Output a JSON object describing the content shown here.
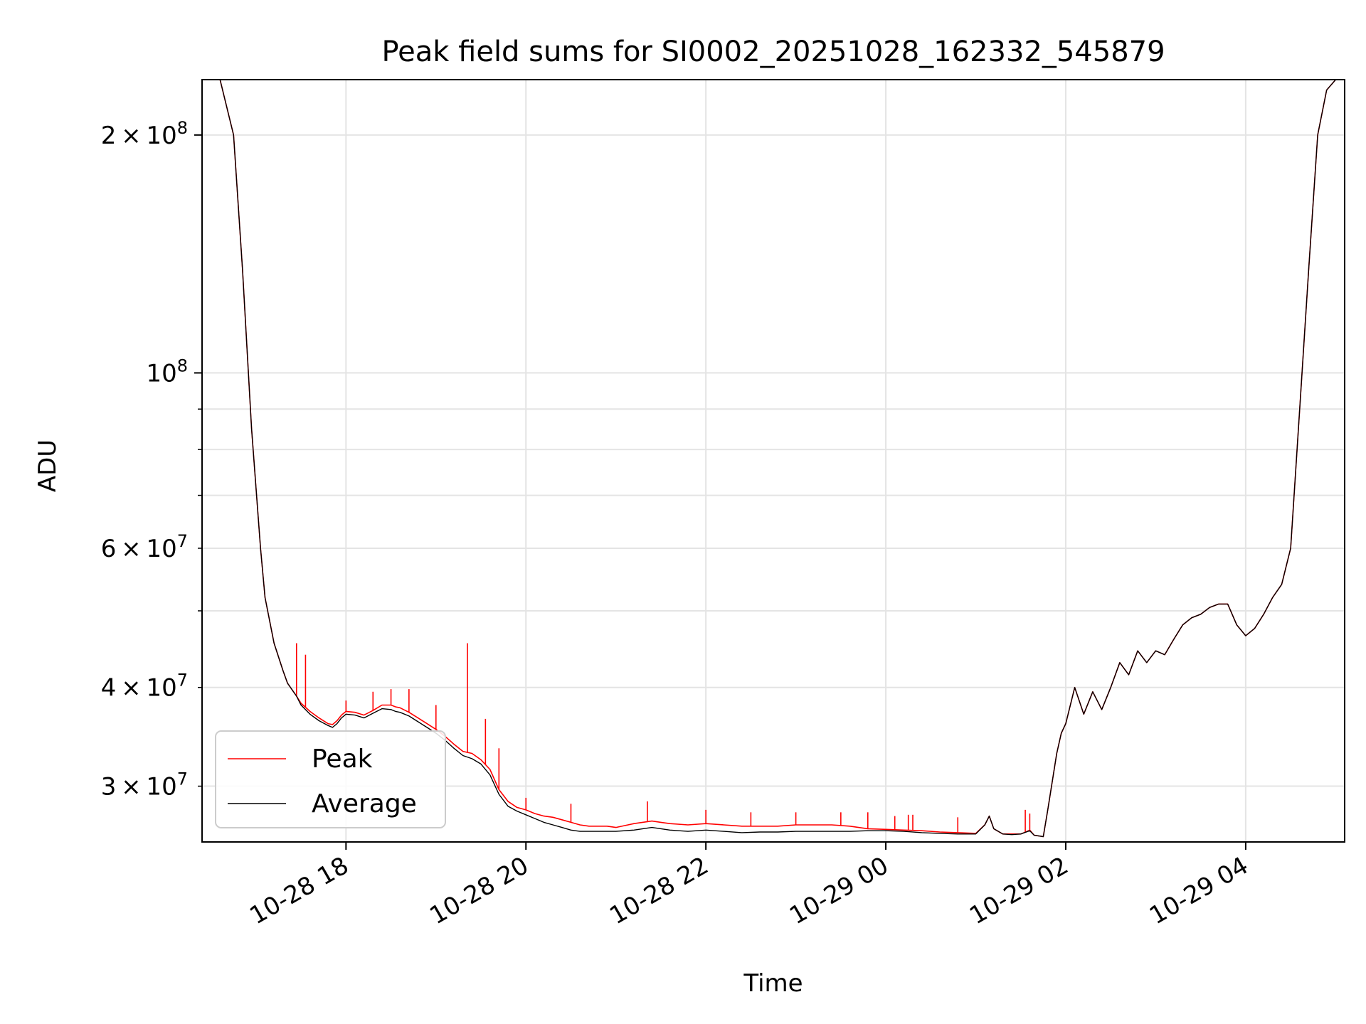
{
  "chart_data": {
    "type": "line",
    "title": "Peak field sums for SI0002_20251028_162332_545879",
    "xlabel": "Time",
    "ylabel": "ADU",
    "yscale": "log",
    "grid": true,
    "legend_position": "lower-left",
    "x_unit": "hours since 10-28 00:00",
    "xlim": [
      16.4,
      29.1
    ],
    "ylim": [
      25500000,
      235000000
    ],
    "xticks": [
      {
        "value": 18,
        "label": "10-28 18"
      },
      {
        "value": 20,
        "label": "10-28 20"
      },
      {
        "value": 22,
        "label": "10-28 22"
      },
      {
        "value": 24,
        "label": "10-29 00"
      },
      {
        "value": 26,
        "label": "10-29 02"
      },
      {
        "value": 28,
        "label": "10-29 04"
      }
    ],
    "yticks_major": [
      {
        "value": 100000000,
        "base": "10",
        "exp": "8",
        "coef": ""
      },
      {
        "value": 200000000,
        "base": "10",
        "exp": "8",
        "coef": "2"
      }
    ],
    "yticks_minor": [
      {
        "value": 30000000,
        "coef": "3",
        "base": "10",
        "exp": "7"
      },
      {
        "value": 40000000,
        "coef": "4",
        "base": "10",
        "exp": "7"
      },
      {
        "value": 50000000,
        "coef": "",
        "base": "",
        "exp": ""
      },
      {
        "value": 60000000,
        "coef": "6",
        "base": "10",
        "exp": "7"
      },
      {
        "value": 70000000,
        "coef": "",
        "base": "",
        "exp": ""
      },
      {
        "value": 80000000,
        "coef": "",
        "base": "",
        "exp": ""
      },
      {
        "value": 90000000,
        "coef": "",
        "base": "",
        "exp": ""
      }
    ],
    "series": [
      {
        "name": "Peak",
        "color": "#ff0000",
        "x": [
          16.4,
          16.6,
          16.75,
          16.85,
          16.95,
          17.05,
          17.1,
          17.2,
          17.3,
          17.35,
          17.45,
          17.5,
          17.6,
          17.7,
          17.8,
          17.85,
          17.9,
          17.95,
          18.0,
          18.1,
          18.2,
          18.3,
          18.4,
          18.5,
          18.55,
          18.6,
          18.7,
          18.8,
          18.9,
          19.0,
          19.1,
          19.2,
          19.3,
          19.4,
          19.5,
          19.6,
          19.7,
          19.8,
          19.9,
          20.0,
          20.1,
          20.2,
          20.3,
          20.4,
          20.5,
          20.6,
          20.7,
          20.8,
          20.9,
          21.0,
          21.2,
          21.4,
          21.5,
          21.6,
          21.8,
          22.0,
          22.2,
          22.4,
          22.6,
          22.8,
          23.0,
          23.2,
          23.4,
          23.6,
          23.8,
          24.0,
          24.2,
          24.4,
          24.6,
          24.8,
          25.0,
          25.1,
          25.15,
          25.2,
          25.3,
          25.4,
          25.5,
          25.6,
          25.65,
          25.75,
          25.8,
          25.9,
          25.95,
          26.0,
          26.1,
          26.2,
          26.3,
          26.4,
          26.5,
          26.6,
          26.7,
          26.8,
          26.9,
          27.0,
          27.1,
          27.2,
          27.3,
          27.4,
          27.5,
          27.6,
          27.7,
          27.8,
          27.9,
          28.0,
          28.1,
          28.2,
          28.3,
          28.4,
          28.5,
          28.6,
          28.7,
          28.8,
          28.9,
          29.0,
          29.1
        ],
        "values": [
          235000000,
          235000000,
          200000000,
          135000000,
          85000000,
          60000000,
          52000000,
          45500000,
          42000000,
          40500000,
          39000000,
          38200000,
          37300000,
          36600000,
          36000000,
          35900000,
          36300000,
          36900000,
          37300000,
          37200000,
          36900000,
          37400000,
          38000000,
          38000000,
          37800000,
          37700000,
          37200000,
          36600000,
          36000000,
          35400000,
          34700000,
          33900000,
          33200000,
          33000000,
          32400000,
          31500000,
          29700000,
          28700000,
          28200000,
          28000000,
          27700000,
          27500000,
          27400000,
          27200000,
          27000000,
          26800000,
          26700000,
          26700000,
          26700000,
          26600000,
          26900000,
          27100000,
          27000000,
          26900000,
          26800000,
          26900000,
          26800000,
          26700000,
          26700000,
          26700000,
          26800000,
          26800000,
          26800000,
          26700000,
          26500000,
          26450000,
          26400000,
          26350000,
          26250000,
          26200000,
          26150000,
          26800000,
          27500000,
          26500000,
          26100000,
          26100000,
          26100000,
          26400000,
          26000000,
          25900000,
          28000000,
          33000000,
          35000000,
          36000000,
          40000000,
          37000000,
          39500000,
          37500000,
          40000000,
          43000000,
          41500000,
          44500000,
          43000000,
          44500000,
          44000000,
          46000000,
          48000000,
          49000000,
          49500000,
          50500000,
          51000000,
          51000000,
          48000000,
          46500000,
          47500000,
          49500000,
          52000000,
          54000000,
          60000000,
          90000000,
          135000000,
          200000000,
          228000000,
          235000000,
          235000000
        ],
        "spikes": [
          {
            "x": 17.45,
            "value": 45500000
          },
          {
            "x": 17.55,
            "value": 44000000
          },
          {
            "x": 18.0,
            "value": 38500000
          },
          {
            "x": 18.3,
            "value": 39500000
          },
          {
            "x": 18.5,
            "value": 39800000
          },
          {
            "x": 18.7,
            "value": 39800000
          },
          {
            "x": 19.0,
            "value": 38000000
          },
          {
            "x": 19.35,
            "value": 45500000
          },
          {
            "x": 19.55,
            "value": 36500000
          },
          {
            "x": 19.7,
            "value": 33500000
          },
          {
            "x": 20.0,
            "value": 29000000
          },
          {
            "x": 20.5,
            "value": 28500000
          },
          {
            "x": 21.35,
            "value": 28700000
          },
          {
            "x": 22.0,
            "value": 28000000
          },
          {
            "x": 22.5,
            "value": 27800000
          },
          {
            "x": 23.0,
            "value": 27800000
          },
          {
            "x": 23.5,
            "value": 27800000
          },
          {
            "x": 23.8,
            "value": 27800000
          },
          {
            "x": 24.1,
            "value": 27500000
          },
          {
            "x": 24.25,
            "value": 27600000
          },
          {
            "x": 24.3,
            "value": 27600000
          },
          {
            "x": 24.8,
            "value": 27400000
          },
          {
            "x": 25.55,
            "value": 28000000
          },
          {
            "x": 25.6,
            "value": 27700000
          }
        ]
      },
      {
        "name": "Average",
        "color": "#000000",
        "x": [
          16.4,
          16.6,
          16.75,
          16.85,
          16.95,
          17.05,
          17.1,
          17.2,
          17.3,
          17.35,
          17.45,
          17.5,
          17.6,
          17.7,
          17.8,
          17.85,
          17.9,
          17.95,
          18.0,
          18.1,
          18.2,
          18.3,
          18.4,
          18.5,
          18.55,
          18.6,
          18.7,
          18.8,
          18.9,
          19.0,
          19.1,
          19.2,
          19.3,
          19.4,
          19.5,
          19.6,
          19.7,
          19.8,
          19.9,
          20.0,
          20.1,
          20.2,
          20.3,
          20.4,
          20.5,
          20.6,
          20.7,
          20.8,
          20.9,
          21.0,
          21.2,
          21.4,
          21.5,
          21.6,
          21.8,
          22.0,
          22.2,
          22.4,
          22.6,
          22.8,
          23.0,
          23.2,
          23.4,
          23.6,
          23.8,
          24.0,
          24.2,
          24.4,
          24.6,
          24.8,
          25.0,
          25.1,
          25.15,
          25.2,
          25.3,
          25.4,
          25.5,
          25.6,
          25.65,
          25.75,
          25.8,
          25.9,
          25.95,
          26.0,
          26.1,
          26.2,
          26.3,
          26.4,
          26.5,
          26.6,
          26.7,
          26.8,
          26.9,
          27.0,
          27.1,
          27.2,
          27.3,
          27.4,
          27.5,
          27.6,
          27.7,
          27.8,
          27.9,
          28.0,
          28.1,
          28.2,
          28.3,
          28.4,
          28.5,
          28.6,
          28.7,
          28.8,
          28.9,
          29.0,
          29.1
        ],
        "values": [
          235000000,
          235000000,
          200000000,
          135000000,
          85000000,
          60000000,
          52000000,
          45500000,
          42000000,
          40500000,
          39000000,
          38000000,
          37000000,
          36300000,
          35800000,
          35600000,
          36000000,
          36600000,
          37000000,
          36900000,
          36600000,
          37100000,
          37600000,
          37500000,
          37300000,
          37200000,
          36800000,
          36200000,
          35600000,
          35000000,
          34300000,
          33500000,
          32800000,
          32500000,
          32000000,
          31000000,
          29300000,
          28300000,
          27900000,
          27600000,
          27300000,
          27000000,
          26800000,
          26600000,
          26400000,
          26300000,
          26300000,
          26300000,
          26300000,
          26300000,
          26400000,
          26600000,
          26500000,
          26400000,
          26300000,
          26400000,
          26300000,
          26200000,
          26250000,
          26250000,
          26300000,
          26300000,
          26300000,
          26300000,
          26350000,
          26350000,
          26300000,
          26200000,
          26150000,
          26100000,
          26100000,
          26800000,
          27500000,
          26500000,
          26100000,
          26050000,
          26100000,
          26350000,
          26000000,
          25900000,
          28000000,
          33000000,
          35000000,
          36000000,
          40000000,
          37000000,
          39500000,
          37500000,
          40000000,
          43000000,
          41500000,
          44500000,
          43000000,
          44500000,
          44000000,
          46000000,
          48000000,
          49000000,
          49500000,
          50500000,
          51000000,
          51000000,
          48000000,
          46500000,
          47500000,
          49500000,
          52000000,
          54000000,
          60000000,
          90000000,
          135000000,
          200000000,
          228000000,
          235000000,
          235000000
        ]
      }
    ]
  }
}
